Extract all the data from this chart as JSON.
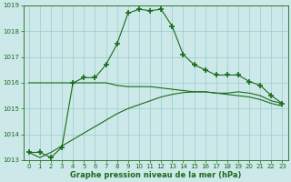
{
  "x": [
    0,
    1,
    2,
    3,
    4,
    5,
    6,
    7,
    8,
    9,
    10,
    11,
    12,
    13,
    14,
    15,
    16,
    17,
    18,
    19,
    20,
    21,
    22,
    23
  ],
  "line1": [
    1013.3,
    1013.3,
    1013.1,
    1013.5,
    1016.0,
    1016.2,
    1016.2,
    1016.7,
    1017.5,
    1018.7,
    1018.85,
    1018.8,
    1018.85,
    1018.2,
    1017.1,
    1016.7,
    1016.5,
    1016.3,
    1016.3,
    1016.3,
    1016.05,
    1015.9,
    1015.5,
    1015.2
  ],
  "line2": [
    1016.0,
    1016.0,
    1016.0,
    1016.0,
    1016.0,
    1016.0,
    1016.0,
    1016.0,
    1015.9,
    1015.85,
    1015.85,
    1015.85,
    1015.8,
    1015.75,
    1015.7,
    1015.65,
    1015.65,
    1015.6,
    1015.6,
    1015.65,
    1015.6,
    1015.5,
    1015.3,
    1015.2
  ],
  "line3": [
    1013.3,
    1013.1,
    1013.3,
    1013.55,
    1013.8,
    1014.05,
    1014.3,
    1014.55,
    1014.8,
    1015.0,
    1015.15,
    1015.3,
    1015.45,
    1015.55,
    1015.62,
    1015.65,
    1015.65,
    1015.6,
    1015.55,
    1015.5,
    1015.45,
    1015.35,
    1015.2,
    1015.1
  ],
  "ylim": [
    1013.0,
    1019.0
  ],
  "xlim_min": -0.5,
  "xlim_max": 23.5,
  "yticks": [
    1013,
    1014,
    1015,
    1016,
    1017,
    1018,
    1019
  ],
  "xticks": [
    0,
    1,
    2,
    3,
    4,
    5,
    6,
    7,
    8,
    9,
    10,
    11,
    12,
    13,
    14,
    15,
    16,
    17,
    18,
    19,
    20,
    21,
    22,
    23
  ],
  "xlabel": "Graphe pression niveau de la mer (hPa)",
  "line_color": "#1a6b1a",
  "bg_color": "#cce8e8",
  "grid_color": "#99cccc",
  "marker": "+",
  "markersize": 4,
  "markerwidth": 1.2,
  "linewidth": 0.8,
  "tick_fontsize": 5,
  "xlabel_fontsize": 6,
  "fig_width": 3.2,
  "fig_height": 2.0,
  "dpi": 100
}
